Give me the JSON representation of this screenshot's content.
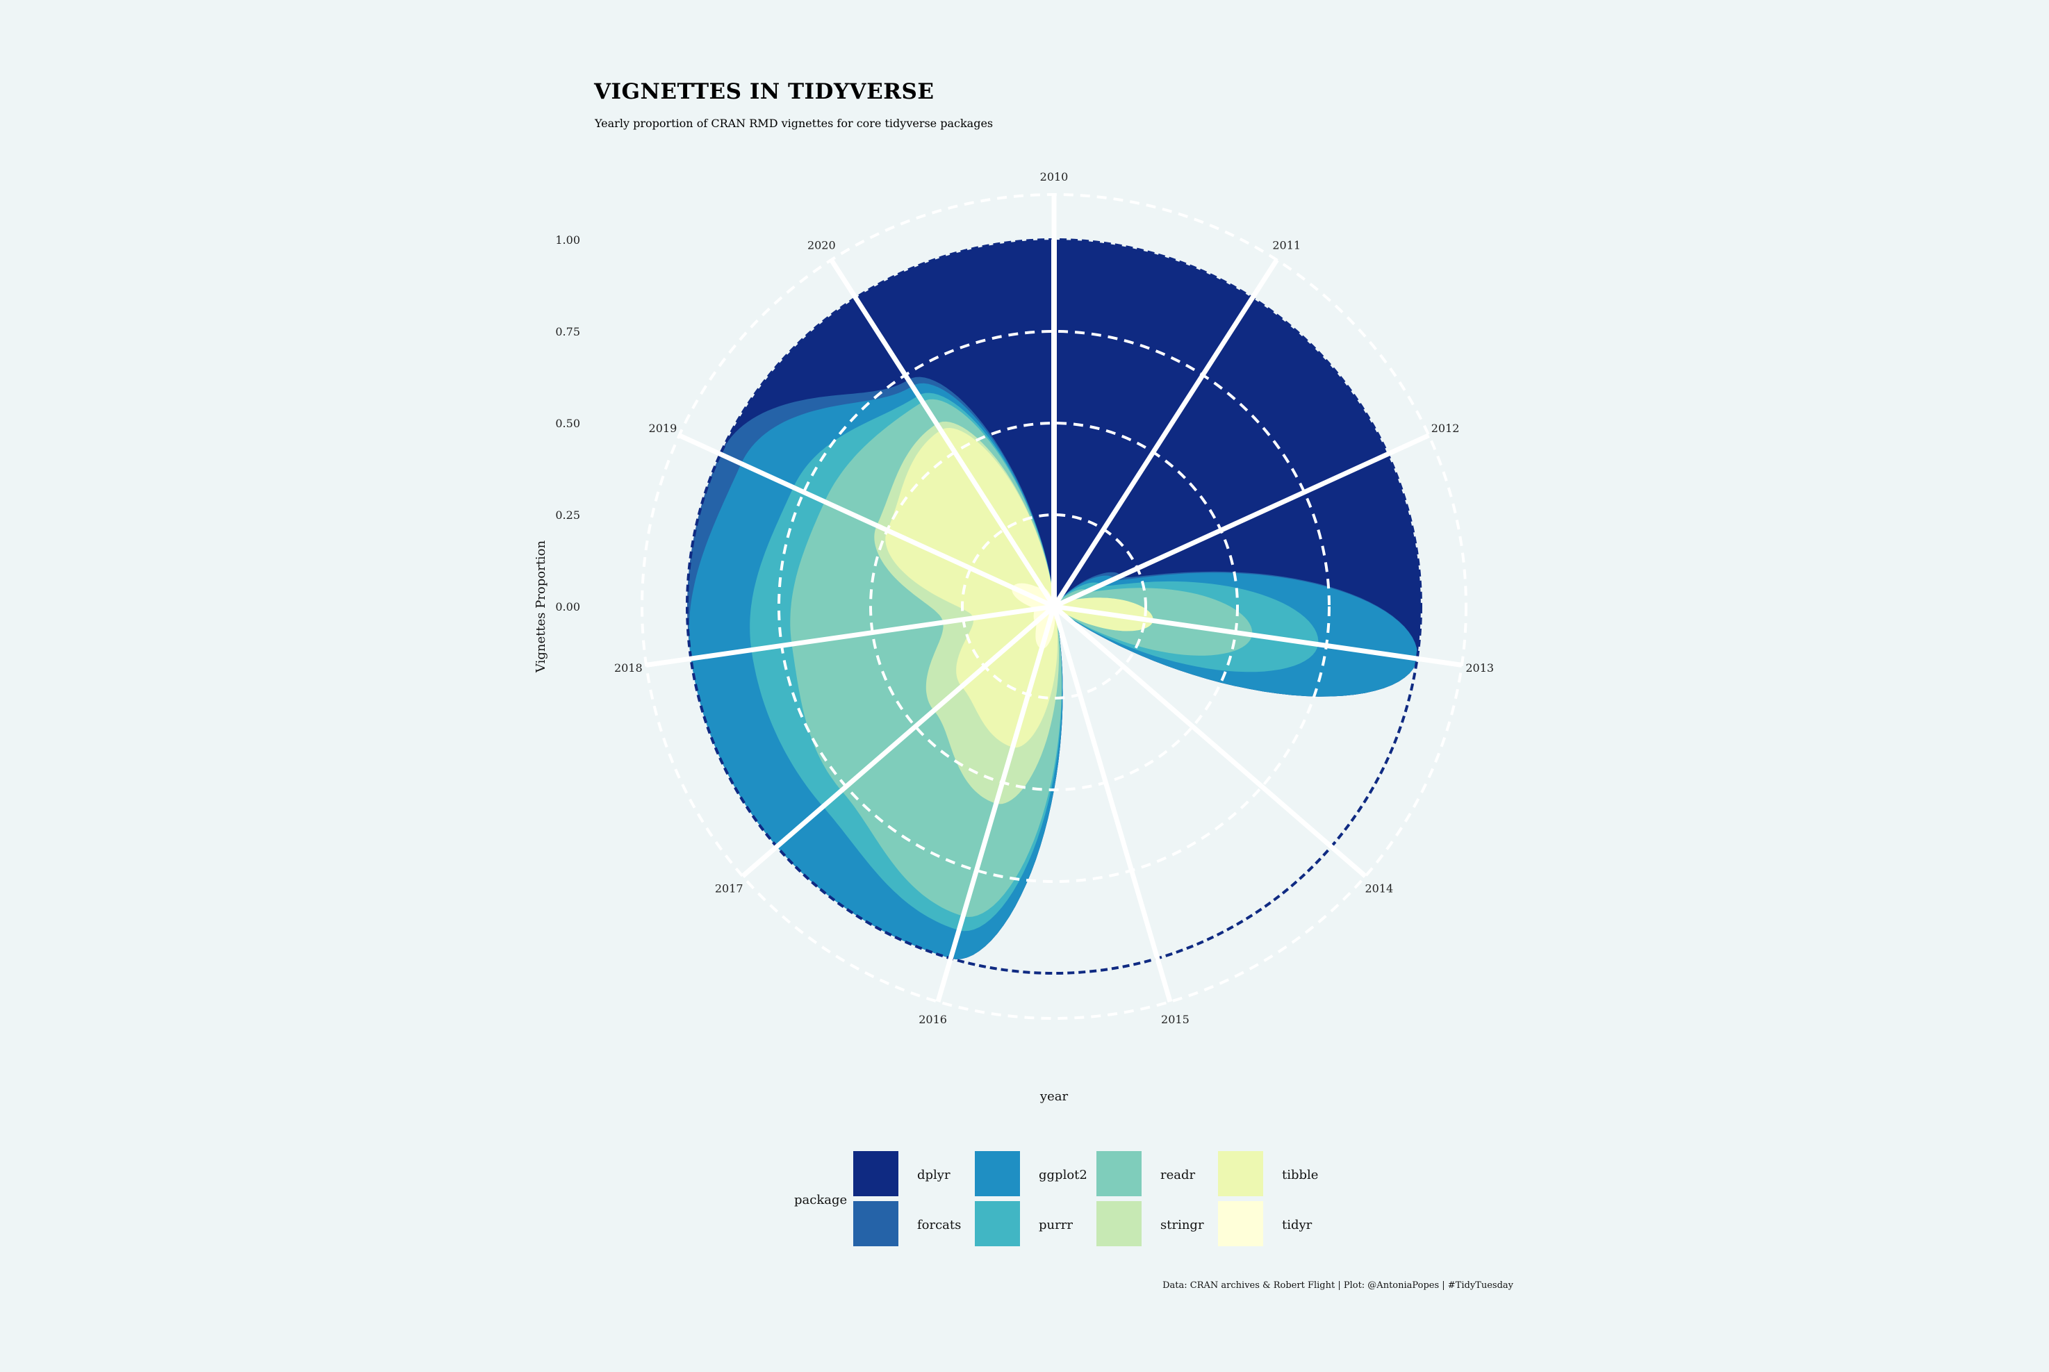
{
  "title": "VIGNETTES IN TIDYVERSE",
  "subtitle": "Yearly proportion of CRAN RMD vignettes for core tidyverse packages",
  "caption": "Data: CRAN archives & Robert Flight | Plot: @AntoniaPopes | #TidyTuesday",
  "chart_data": {
    "type": "area",
    "coordinate_system": "polar",
    "xlabel": "year",
    "ylabel": "Vignettes Proportion",
    "ylim": [
      0,
      1
    ],
    "y_ticks": [
      "0.00",
      "0.25",
      "0.50",
      "0.75",
      "1.00"
    ],
    "categories": [
      "2010",
      "2011",
      "2012",
      "2013",
      "2014",
      "2015",
      "2016",
      "2017",
      "2018",
      "2019",
      "2020"
    ],
    "stacking": "fill",
    "grid": true,
    "legend": {
      "title": "package",
      "position": "bottom",
      "items": [
        "dplyr",
        "forcats",
        "ggplot2",
        "purrr",
        "readr",
        "stringr",
        "tibble",
        "tidyr"
      ]
    },
    "series": [
      {
        "name": "dplyr",
        "color": "#0f2a82",
        "values": [
          0.2,
          0.05,
          0.4,
          0.0,
          0.0,
          0.0,
          0.0,
          0.0,
          0.0,
          0.0,
          0.26
        ]
      },
      {
        "name": "forcats",
        "color": "#2563a8",
        "values": [
          0.0,
          0.0,
          0.01,
          0.0,
          0.0,
          0.0,
          0.0,
          0.0,
          0.0,
          0.02,
          0.02
        ]
      },
      {
        "name": "ggplot2",
        "color": "#1f8fc3",
        "values": [
          0.0,
          0.0,
          0.02,
          0.03,
          0.0,
          0.0,
          0.02,
          0.05,
          0.06,
          0.05,
          0.03
        ]
      },
      {
        "name": "purrr",
        "color": "#41b6c4",
        "values": [
          0.0,
          0.0,
          0.02,
          0.02,
          0.0,
          0.0,
          0.01,
          0.02,
          0.04,
          0.03,
          0.02
        ]
      },
      {
        "name": "readr",
        "color": "#7fcdbb",
        "values": [
          0.0,
          0.0,
          0.03,
          0.03,
          0.0,
          0.0,
          0.08,
          0.1,
          0.15,
          0.05,
          0.07
        ]
      },
      {
        "name": "stringr",
        "color": "#c7e9b4",
        "values": [
          0.0,
          0.0,
          0.0,
          0.0,
          0.0,
          0.0,
          0.04,
          0.03,
          0.03,
          0.01,
          0.02
        ]
      },
      {
        "name": "tibble",
        "color": "#edf8b1",
        "values": [
          0.0,
          0.0,
          0.02,
          0.03,
          0.0,
          0.0,
          0.07,
          0.08,
          0.06,
          0.12,
          0.5
        ]
      },
      {
        "name": "tidyr",
        "color": "#ffffd9",
        "values": [
          0.0,
          0.0,
          0.0,
          0.0,
          0.0,
          0.0,
          0.03,
          0.02,
          0.02,
          0.04,
          0.06
        ]
      }
    ]
  }
}
